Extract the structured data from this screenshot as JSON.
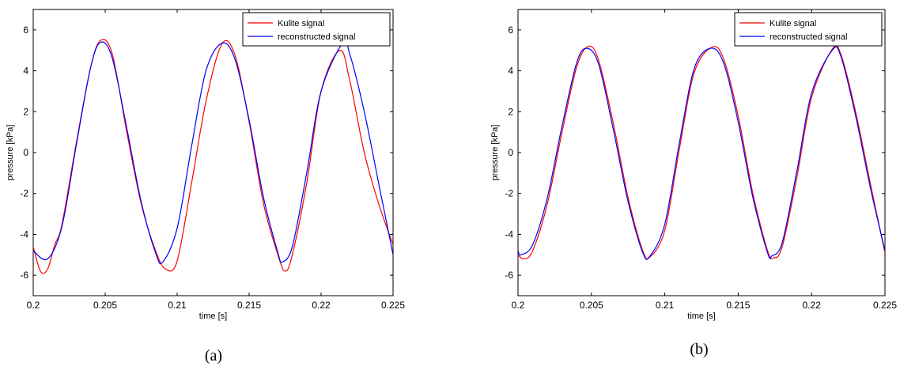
{
  "chart_data": [
    {
      "type": "line",
      "caption": "(a)",
      "xlabel": "time [s]",
      "ylabel": "pressure [kPa]",
      "xlim": [
        0.2,
        0.225
      ],
      "ylim": [
        -7,
        7
      ],
      "xticks": [
        0.2,
        0.205,
        0.21,
        0.215,
        0.22,
        0.225
      ],
      "xtick_labels": [
        "0.2",
        "0.205",
        "0.21",
        "0.215",
        "0.22",
        "0.225"
      ],
      "yticks": [
        -6,
        -4,
        -2,
        0,
        2,
        4,
        6
      ],
      "ytick_labels": [
        "-6",
        "-4",
        "-2",
        "0",
        "2",
        "4",
        "6"
      ],
      "legend_position": "top-right",
      "series": [
        {
          "name": "Kulite signal",
          "color": "#ff0000",
          "x": [
            0.2,
            0.2005,
            0.201,
            0.2015,
            0.202,
            0.203,
            0.204,
            0.2047,
            0.2055,
            0.2065,
            0.2075,
            0.2085,
            0.2092,
            0.21,
            0.211,
            0.212,
            0.2131,
            0.214,
            0.215,
            0.216,
            0.217,
            0.2175,
            0.218,
            0.219,
            0.22,
            0.2213,
            0.222,
            0.223,
            0.224,
            0.225
          ],
          "y": [
            -4.6,
            -5.8,
            -5.7,
            -4.5,
            -3.5,
            0.5,
            4.2,
            5.5,
            4.8,
            1.0,
            -2.5,
            -4.8,
            -5.7,
            -5.3,
            -1.5,
            2.5,
            5.3,
            4.8,
            1.5,
            -2.5,
            -5.0,
            -5.8,
            -5.0,
            -1.5,
            3.0,
            5.0,
            3.5,
            0.0,
            -2.5,
            -4.5
          ]
        },
        {
          "name": "reconstructed signal",
          "color": "#0000ff",
          "x": [
            0.2,
            0.201,
            0.202,
            0.203,
            0.204,
            0.2047,
            0.2055,
            0.2065,
            0.2075,
            0.2085,
            0.209,
            0.21,
            0.211,
            0.212,
            0.2131,
            0.214,
            0.215,
            0.216,
            0.217,
            0.2173,
            0.218,
            0.219,
            0.22,
            0.2215,
            0.222,
            0.223,
            0.224,
            0.225
          ],
          "y": [
            -4.8,
            -5.2,
            -3.6,
            0.4,
            4.2,
            5.4,
            4.6,
            1.2,
            -2.4,
            -4.9,
            -5.35,
            -3.7,
            0.3,
            4.0,
            5.35,
            4.6,
            1.6,
            -2.2,
            -4.9,
            -5.35,
            -4.6,
            -1.0,
            3.0,
            5.35,
            4.8,
            2.0,
            -1.5,
            -5.0
          ]
        }
      ]
    },
    {
      "type": "line",
      "caption": "(b)",
      "xlabel": "time [s]",
      "ylabel": "pressure [kPa]",
      "xlim": [
        0.2,
        0.225
      ],
      "ylim": [
        -7,
        7
      ],
      "xticks": [
        0.2,
        0.205,
        0.21,
        0.215,
        0.22,
        0.225
      ],
      "xtick_labels": [
        "0.2",
        "0.205",
        "0.21",
        "0.215",
        "0.22",
        "0.225"
      ],
      "yticks": [
        -6,
        -4,
        -2,
        0,
        2,
        4,
        6
      ],
      "ytick_labels": [
        "-6",
        "-4",
        "-2",
        "0",
        "2",
        "4",
        "6"
      ],
      "legend_position": "top-right",
      "series": [
        {
          "name": "Kulite signal",
          "color": "#ff0000",
          "x": [
            0.2,
            0.2004,
            0.201,
            0.202,
            0.203,
            0.204,
            0.2048,
            0.2055,
            0.2065,
            0.2075,
            0.2085,
            0.209,
            0.21,
            0.211,
            0.212,
            0.2132,
            0.214,
            0.215,
            0.216,
            0.217,
            0.2174,
            0.218,
            0.219,
            0.22,
            0.2214,
            0.222,
            0.223,
            0.224,
            0.225
          ],
          "y": [
            -5.0,
            -5.2,
            -4.8,
            -2.5,
            1.0,
            4.2,
            5.2,
            4.5,
            1.4,
            -2.2,
            -4.8,
            -5.1,
            -3.8,
            0.2,
            3.9,
            5.15,
            4.6,
            1.8,
            -2.0,
            -4.8,
            -5.15,
            -4.6,
            -1.2,
            2.7,
            5.05,
            4.8,
            2.0,
            -1.5,
            -4.9
          ]
        },
        {
          "name": "reconstructed signal",
          "color": "#0000ff",
          "x": [
            0.2,
            0.2002,
            0.201,
            0.202,
            0.203,
            0.204,
            0.2047,
            0.2055,
            0.2065,
            0.2075,
            0.2085,
            0.209,
            0.21,
            0.211,
            0.212,
            0.2131,
            0.214,
            0.215,
            0.216,
            0.217,
            0.2173,
            0.218,
            0.219,
            0.22,
            0.2214,
            0.222,
            0.223,
            0.224,
            0.225
          ],
          "y": [
            -4.8,
            -5.0,
            -4.5,
            -2.2,
            1.3,
            4.4,
            5.1,
            4.3,
            1.1,
            -2.4,
            -4.9,
            -5.05,
            -3.5,
            0.5,
            4.1,
            5.1,
            4.4,
            1.5,
            -2.2,
            -4.9,
            -5.05,
            -4.4,
            -0.9,
            2.9,
            5.0,
            4.7,
            1.8,
            -1.7,
            -4.8
          ]
        }
      ]
    }
  ]
}
